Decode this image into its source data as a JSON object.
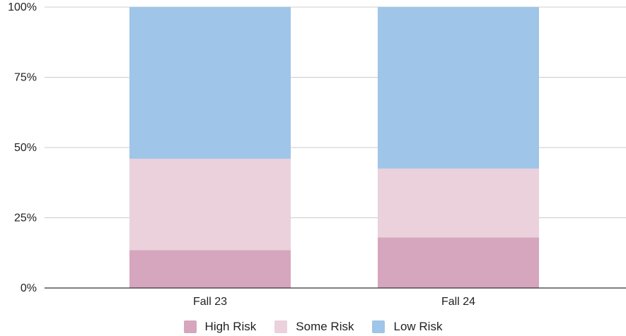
{
  "chart_data": {
    "type": "bar",
    "stacked": true,
    "percent": true,
    "categories": [
      "Fall 23",
      "Fall 24"
    ],
    "series": [
      {
        "name": "High Risk",
        "values": [
          13.5,
          18
        ],
        "color": "#d5a6bd"
      },
      {
        "name": "Some Risk",
        "values": [
          32.5,
          24.5
        ],
        "color": "#ead1dc"
      },
      {
        "name": "Low Risk",
        "values": [
          54,
          57.5
        ],
        "color": "#9fc5e8"
      }
    ],
    "yticks": [
      "0%",
      "25%",
      "50%",
      "75%",
      "100%"
    ],
    "ylim": [
      0,
      100
    ],
    "grid": true,
    "legend": "bottom"
  }
}
